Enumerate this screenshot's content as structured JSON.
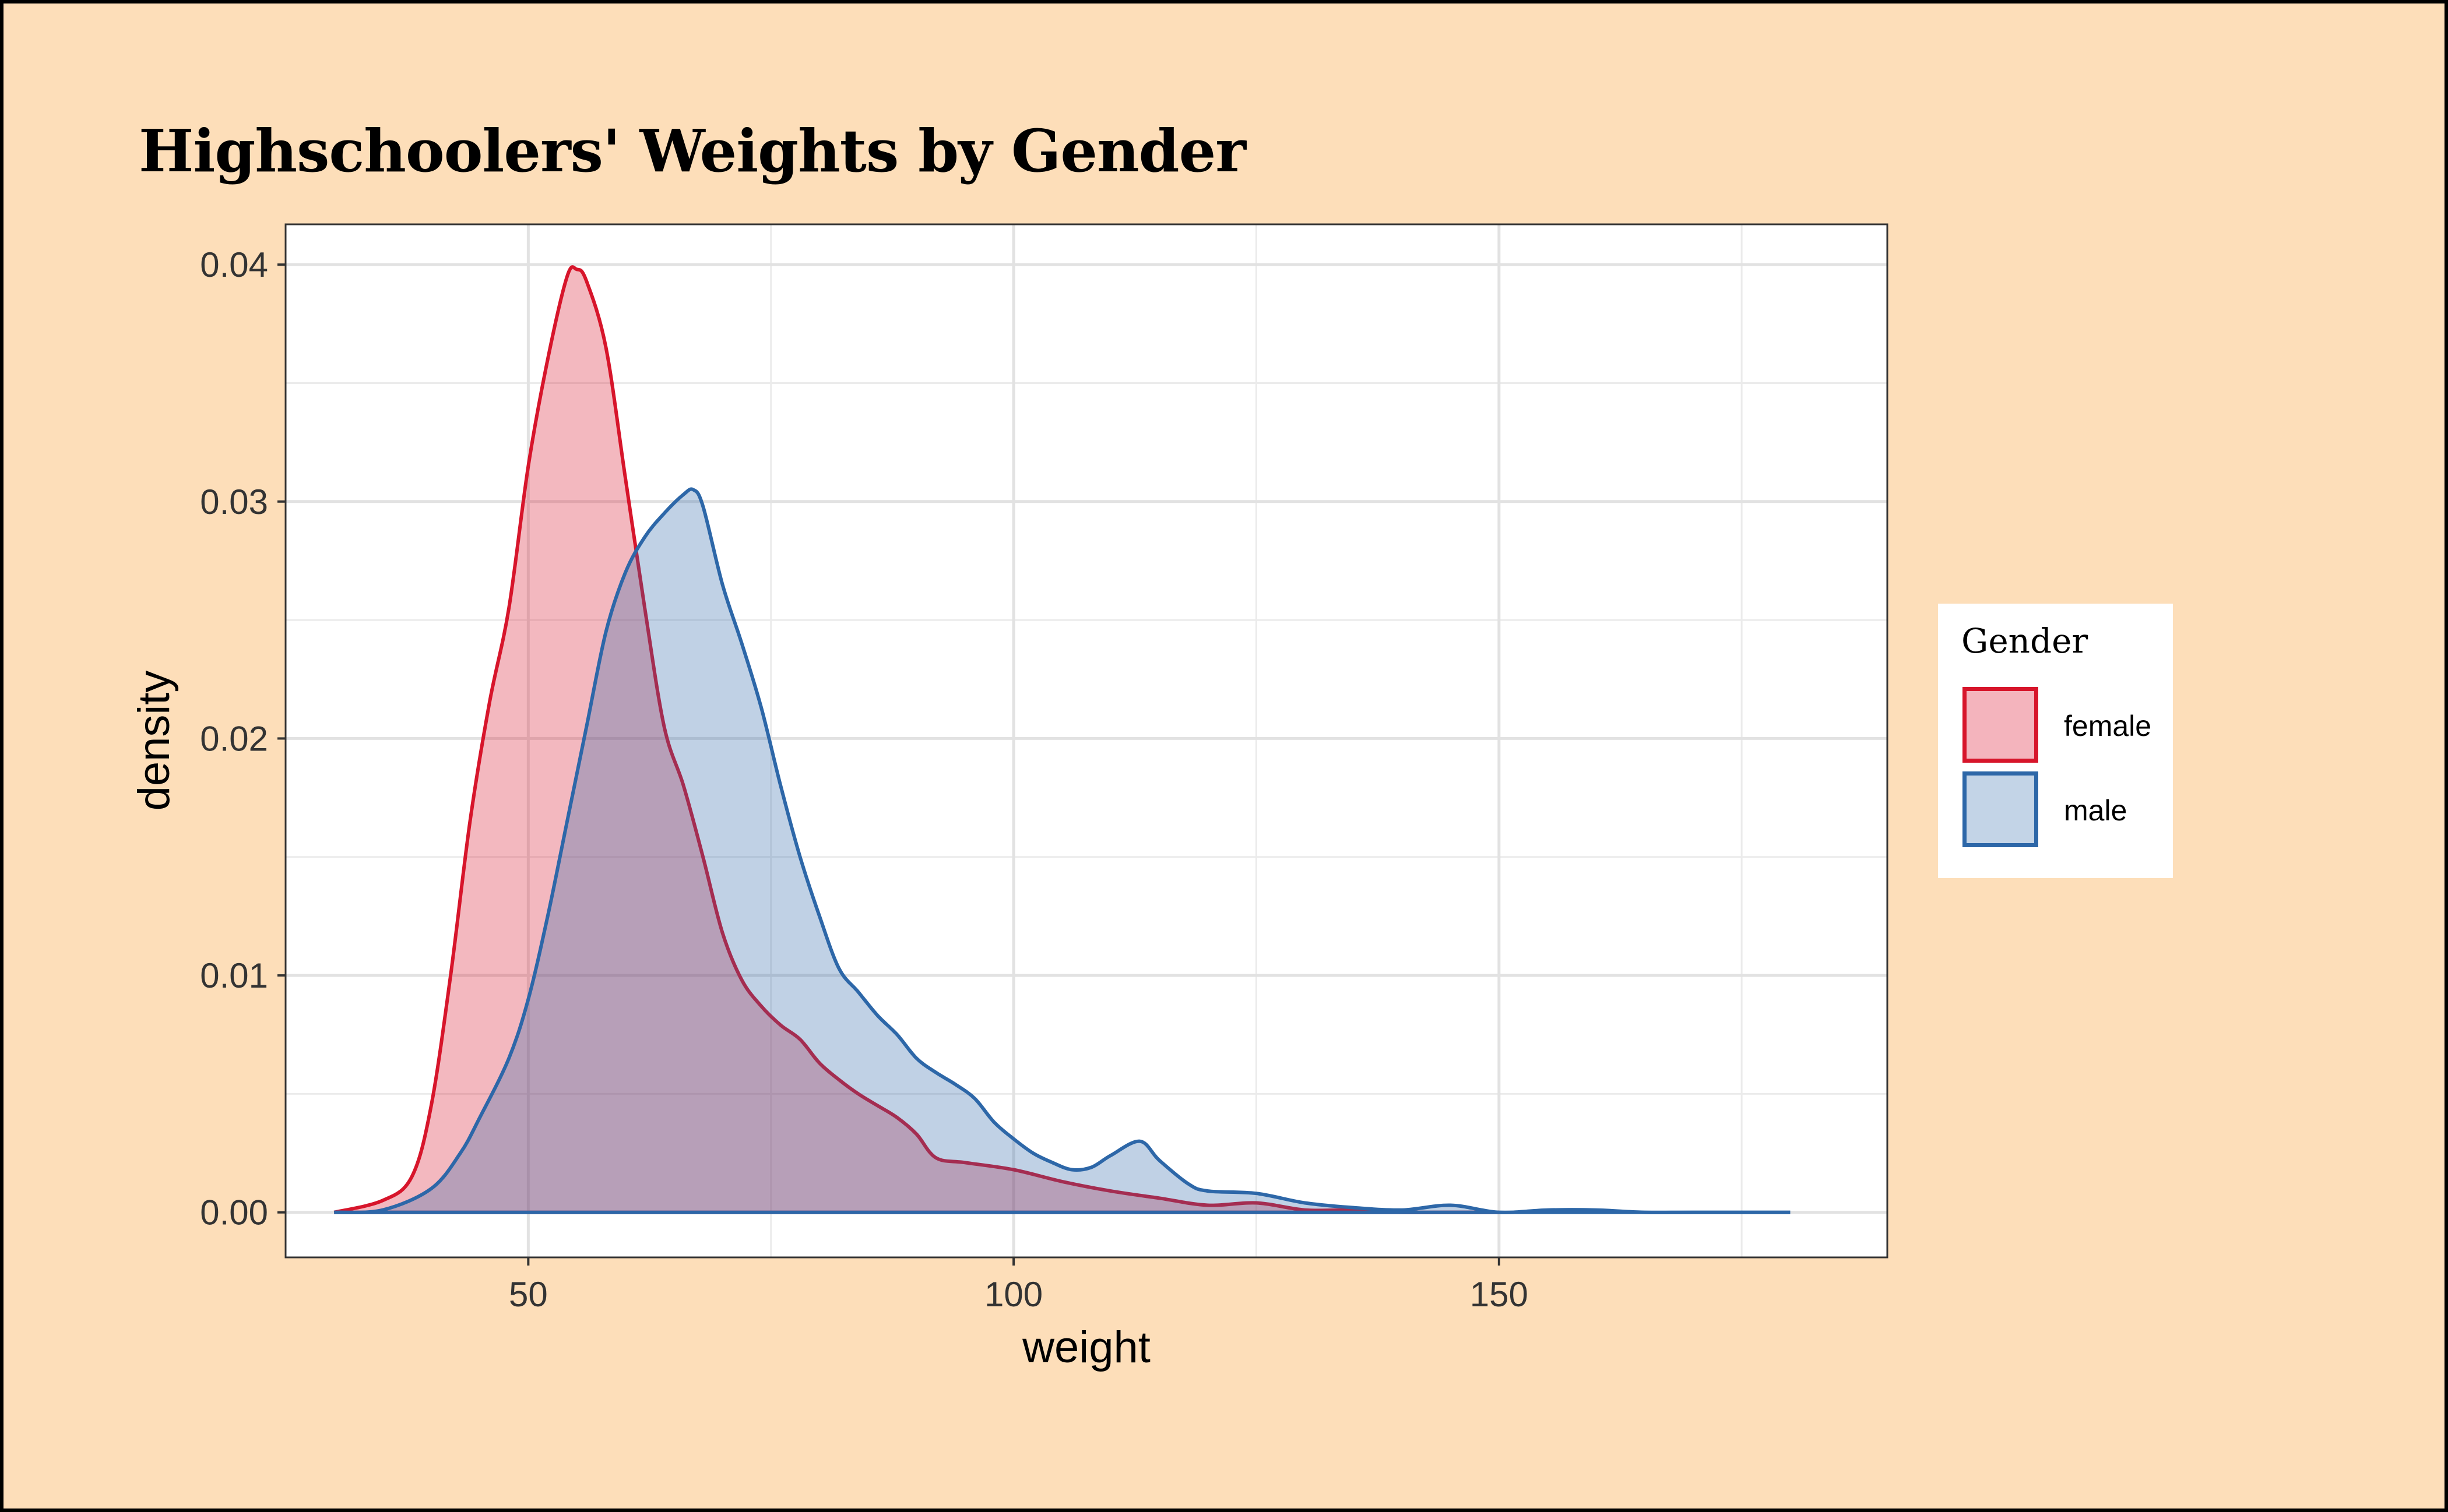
{
  "chart_data": {
    "type": "area",
    "title": "Highschoolers' Weights by Gender",
    "xlabel": "weight",
    "ylabel": "density",
    "xlim": [
      25,
      190
    ],
    "ylim": [
      -0.0019,
      0.0417
    ],
    "x_ticks": [
      50,
      100,
      150
    ],
    "x_tick_labels": [
      "50",
      "100",
      "150"
    ],
    "y_ticks": [
      0,
      0.01,
      0.02,
      0.03,
      0.04
    ],
    "y_tick_labels": [
      "0.00",
      "0.01",
      "0.02",
      "0.03",
      "0.04"
    ],
    "grid": true,
    "legend": {
      "title": "Gender",
      "position": "right"
    },
    "series": [
      {
        "name": "female",
        "line_color": "#D7152B",
        "fill_color": "#F4B4BD",
        "x": [
          30,
          35,
          38,
          40,
          42,
          44,
          46,
          48,
          50,
          52,
          54,
          55,
          56,
          58,
          60,
          62,
          64,
          66,
          68,
          70,
          72,
          74,
          76,
          78,
          80,
          82,
          84,
          86,
          88,
          90,
          92,
          95,
          100,
          105,
          110,
          115,
          120,
          125,
          130,
          135,
          140,
          145,
          150
        ],
        "y": [
          0,
          0.0005,
          0.0015,
          0.0045,
          0.01,
          0.0165,
          0.0215,
          0.0255,
          0.0315,
          0.036,
          0.0395,
          0.0398,
          0.0393,
          0.0365,
          0.031,
          0.0255,
          0.0205,
          0.018,
          0.015,
          0.0118,
          0.0098,
          0.0087,
          0.0079,
          0.0073,
          0.0063,
          0.0056,
          0.005,
          0.0045,
          0.004,
          0.0033,
          0.0023,
          0.0021,
          0.0018,
          0.0013,
          0.0009,
          0.0006,
          0.0003,
          0.0004,
          0.0001,
          0.0001,
          0,
          0,
          0
        ]
      },
      {
        "name": "male",
        "line_color": "#2D67A8",
        "fill_color": "#C3D4E7",
        "x": [
          30,
          35,
          40,
          43,
          45,
          48,
          50,
          52,
          54,
          56,
          58,
          60,
          62,
          64,
          66,
          67,
          68,
          70,
          72,
          74,
          76,
          78,
          80,
          82,
          84,
          86,
          88,
          90,
          92,
          94,
          96,
          98,
          100,
          102,
          104,
          106,
          108,
          110,
          113,
          115,
          118,
          120,
          125,
          130,
          135,
          140,
          145,
          150,
          155,
          160,
          165,
          170,
          180
        ],
        "y": [
          0,
          0.0001,
          0.001,
          0.0025,
          0.004,
          0.0065,
          0.009,
          0.0125,
          0.0165,
          0.0205,
          0.0245,
          0.027,
          0.0285,
          0.0295,
          0.0303,
          0.0305,
          0.0298,
          0.0265,
          0.024,
          0.0213,
          0.018,
          0.015,
          0.0125,
          0.0103,
          0.0093,
          0.0083,
          0.0075,
          0.0065,
          0.0059,
          0.0054,
          0.0048,
          0.0038,
          0.0031,
          0.0025,
          0.0021,
          0.0018,
          0.0019,
          0.0024,
          0.003,
          0.0022,
          0.0012,
          0.0009,
          0.0008,
          0.0004,
          0.0002,
          0.0001,
          0.0003,
          0,
          0.0001,
          0.0001,
          0,
          0,
          0
        ]
      }
    ]
  }
}
